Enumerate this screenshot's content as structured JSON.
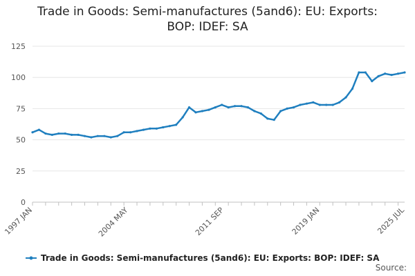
{
  "chart_data": {
    "type": "line",
    "title_lines": [
      "Trade in Goods: Semi-manufactures (5and6): EU: Exports:",
      "BOP: IDEF: SA"
    ],
    "xlabel": "",
    "ylabel": "",
    "ylim": [
      0,
      125
    ],
    "yticks": [
      0,
      25,
      50,
      75,
      100,
      125
    ],
    "xticks": [
      "1997 JAN",
      "2004 MAY",
      "2011 SEP",
      "2019 JAN",
      "2025 JUL"
    ],
    "x_range": [
      "1997 JAN",
      "2025 JUL"
    ],
    "grid": true,
    "legend_position": "bottom",
    "color": "#1f7fbf",
    "series": [
      {
        "name": "Trade in Goods: Semi-manufactures (5and6): EU: Exports: BOP: IDEF: SA",
        "points": [
          [
            "1997 JAN",
            56
          ],
          [
            "1997 JUL",
            58
          ],
          [
            "1998 JAN",
            55
          ],
          [
            "1998 JUL",
            54
          ],
          [
            "1999 JAN",
            55
          ],
          [
            "1999 JUL",
            55
          ],
          [
            "2000 JAN",
            54
          ],
          [
            "2000 JUL",
            54
          ],
          [
            "2001 JAN",
            53
          ],
          [
            "2001 JUL",
            52
          ],
          [
            "2002 JAN",
            53
          ],
          [
            "2002 JUL",
            53
          ],
          [
            "2003 JAN",
            52
          ],
          [
            "2003 JUL",
            53
          ],
          [
            "2004 JAN",
            56
          ],
          [
            "2004 JUL",
            56
          ],
          [
            "2005 JAN",
            57
          ],
          [
            "2005 JUL",
            58
          ],
          [
            "2006 JAN",
            59
          ],
          [
            "2006 JUL",
            59
          ],
          [
            "2007 JAN",
            60
          ],
          [
            "2007 JUL",
            61
          ],
          [
            "2008 JAN",
            62
          ],
          [
            "2008 JUL",
            68
          ],
          [
            "2009 JAN",
            76
          ],
          [
            "2009 JUL",
            72
          ],
          [
            "2010 JAN",
            73
          ],
          [
            "2010 JUL",
            74
          ],
          [
            "2011 JAN",
            76
          ],
          [
            "2011 JUL",
            78
          ],
          [
            "2012 JAN",
            76
          ],
          [
            "2012 JUL",
            77
          ],
          [
            "2013 JAN",
            77
          ],
          [
            "2013 JUL",
            76
          ],
          [
            "2014 JAN",
            73
          ],
          [
            "2014 JUL",
            71
          ],
          [
            "2015 JAN",
            67
          ],
          [
            "2015 JUL",
            66
          ],
          [
            "2016 JAN",
            73
          ],
          [
            "2016 JUL",
            75
          ],
          [
            "2017 JAN",
            76
          ],
          [
            "2017 JUL",
            78
          ],
          [
            "2018 JAN",
            79
          ],
          [
            "2018 JUL",
            80
          ],
          [
            "2019 JAN",
            78
          ],
          [
            "2019 JUL",
            78
          ],
          [
            "2020 JAN",
            78
          ],
          [
            "2020 JUL",
            80
          ],
          [
            "2021 JAN",
            84
          ],
          [
            "2021 JUL",
            91
          ],
          [
            "2022 JAN",
            104
          ],
          [
            "2022 JUL",
            104
          ],
          [
            "2023 JAN",
            97
          ],
          [
            "2023 JUL",
            101
          ],
          [
            "2024 JAN",
            103
          ],
          [
            "2024 JUL",
            102
          ],
          [
            "2025 JAN",
            103
          ],
          [
            "2025 JUL",
            104
          ]
        ]
      }
    ]
  },
  "source_label": "Source:"
}
